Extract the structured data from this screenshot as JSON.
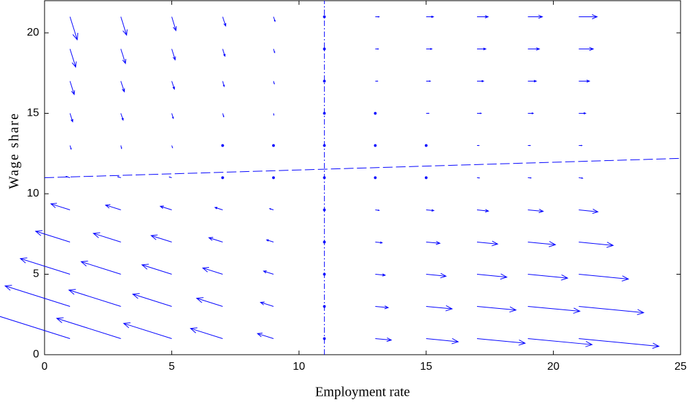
{
  "chart_data": {
    "type": "quiver",
    "xlabel": "Employment rate",
    "ylabel": "Wage share",
    "color": "#0000ff",
    "xlim": [
      0,
      25
    ],
    "ylim": [
      0,
      22
    ],
    "xticks": [
      0,
      5,
      10,
      15,
      20,
      25
    ],
    "yticks": [
      0,
      5,
      10,
      15,
      20
    ],
    "x": [
      1,
      3,
      5,
      7,
      9,
      11,
      13,
      15,
      17,
      19,
      21
    ],
    "y": [
      1,
      3,
      5,
      7,
      9,
      11,
      13,
      15,
      17,
      19,
      21
    ],
    "u": [
      [
        -2.1,
        -1.68,
        -1.26,
        -0.84,
        -0.42,
        0,
        0.42,
        0.84,
        1.26,
        1.68,
        2.1
      ],
      [
        -1.7,
        -1.36,
        -1.02,
        -0.68,
        -0.34,
        0,
        0.34,
        0.68,
        1.02,
        1.36,
        1.7
      ],
      [
        -1.3,
        -1.04,
        -0.78,
        -0.52,
        -0.26,
        0,
        0.26,
        0.52,
        0.78,
        1.04,
        1.3
      ],
      [
        -0.9,
        -0.72,
        -0.54,
        -0.36,
        -0.18,
        0,
        0.18,
        0.36,
        0.54,
        0.72,
        0.9
      ],
      [
        -0.5,
        -0.4,
        -0.3,
        -0.2,
        -0.1,
        0,
        0.1,
        0.2,
        0.3,
        0.4,
        0.5
      ],
      [
        -0.1,
        -0.08,
        -0.06,
        -0.04,
        -0.02,
        0,
        0.02,
        0.04,
        0.06,
        0.08,
        0.1
      ],
      [
        0.03,
        0.02,
        0.02,
        0.01,
        0.01,
        0,
        0.02,
        0.03,
        0.05,
        0.06,
        0.08
      ],
      [
        0.07,
        0.06,
        0.04,
        0.03,
        0.01,
        0,
        0.04,
        0.07,
        0.11,
        0.14,
        0.18
      ],
      [
        0.11,
        0.09,
        0.07,
        0.04,
        0.02,
        0,
        0.06,
        0.11,
        0.17,
        0.22,
        0.28
      ],
      [
        0.15,
        0.12,
        0.09,
        0.06,
        0.03,
        0,
        0.08,
        0.15,
        0.23,
        0.3,
        0.38
      ],
      [
        0.19,
        0.15,
        0.11,
        0.08,
        0.04,
        0,
        0.1,
        0.19,
        0.29,
        0.38,
        0.48
      ]
    ],
    "v": [
      [
        1.05,
        0.84,
        0.63,
        0.42,
        0.21,
        0,
        -0.06,
        -0.13,
        -0.19,
        -0.25,
        -0.32
      ],
      [
        0.85,
        0.68,
        0.51,
        0.34,
        0.17,
        0,
        -0.05,
        -0.1,
        -0.15,
        -0.2,
        -0.26
      ],
      [
        0.65,
        0.52,
        0.39,
        0.26,
        0.13,
        0,
        -0.04,
        -0.08,
        -0.12,
        -0.16,
        -0.2
      ],
      [
        0.45,
        0.36,
        0.27,
        0.18,
        0.09,
        0,
        -0.03,
        -0.05,
        -0.08,
        -0.11,
        -0.14
      ],
      [
        0.25,
        0.2,
        0.15,
        0.1,
        0.05,
        0,
        -0.02,
        -0.03,
        -0.05,
        -0.06,
        -0.08
      ],
      [
        0.05,
        0.04,
        0.03,
        0.02,
        0.01,
        0,
        0,
        -0.01,
        -0.01,
        -0.01,
        -0.02
      ],
      [
        -0.15,
        -0.12,
        -0.09,
        -0.06,
        -0.03,
        0,
        0,
        0,
        0,
        0,
        0
      ],
      [
        -0.35,
        -0.28,
        -0.21,
        -0.14,
        -0.07,
        0,
        0,
        0,
        0,
        0,
        0
      ],
      [
        -0.55,
        -0.44,
        -0.33,
        -0.22,
        -0.11,
        0,
        0,
        0,
        0,
        0,
        0
      ],
      [
        -0.75,
        -0.6,
        -0.45,
        -0.3,
        -0.15,
        0,
        0,
        0,
        0,
        0,
        0
      ],
      [
        -0.95,
        -0.76,
        -0.57,
        -0.38,
        -0.19,
        0,
        0,
        0,
        0,
        0,
        0
      ]
    ],
    "lines": [
      {
        "x": [
          11,
          11
        ],
        "y": [
          0,
          22
        ],
        "style": "dashdot"
      },
      {
        "x": [
          0,
          25
        ],
        "y": [
          11,
          12.2
        ],
        "style": "dashed"
      }
    ]
  }
}
